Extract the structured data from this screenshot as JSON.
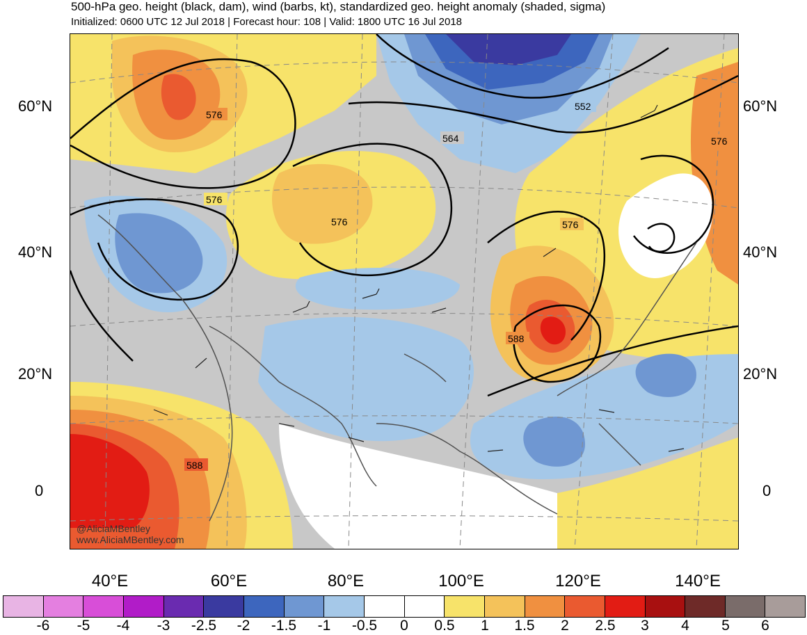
{
  "header": {
    "title": "500-hPa geo. height (black, dam), wind (barbs, kt), standardized geo. height anomaly (shaded, sigma)",
    "subtitle": "Initialized: 0600 UTC 12 Jul 2018 | Forecast hour: 108 | Valid: 1800 UTC 16 Jul 2018"
  },
  "map": {
    "lat_labels_left": [
      "60°N",
      "40°N",
      "20°N",
      "0"
    ],
    "lat_labels_right": [
      "60°N",
      "40°N",
      "20°N",
      "0"
    ],
    "lon_labels": [
      "40°E",
      "60°E",
      "80°E",
      "100°E",
      "120°E",
      "140°E"
    ],
    "contour_labels": [
      "576",
      "576",
      "576",
      "564",
      "552",
      "576",
      "576",
      "588",
      "588"
    ],
    "credit_handle": "@AliciaMBentley",
    "credit_site": "www.AliciaMBentley.com"
  },
  "colorbar": {
    "labels": [
      "-6",
      "-5",
      "-4",
      "-3",
      "-2.5",
      "-2",
      "-1.5",
      "-1",
      "-0.5",
      "0",
      "0.5",
      "1",
      "1.5",
      "2",
      "2.5",
      "3",
      "4",
      "5",
      "6"
    ],
    "colors": [
      "#e8b4e4",
      "#e47fe0",
      "#d84ed8",
      "#b11cc8",
      "#6a2bb0",
      "#3a3aa0",
      "#3d66be",
      "#6f97d2",
      "#a5c8e8",
      "#ffffff",
      "#ffffff",
      "#f7e36a",
      "#f4c25a",
      "#f09040",
      "#ea5a30",
      "#e21c14",
      "#a81010",
      "#6e2a28",
      "#7a6c6a",
      "#a89c9a"
    ]
  },
  "colors": {
    "contour": "#000000",
    "coastline": "#505050",
    "land_neutral": "#c8c8c8"
  }
}
